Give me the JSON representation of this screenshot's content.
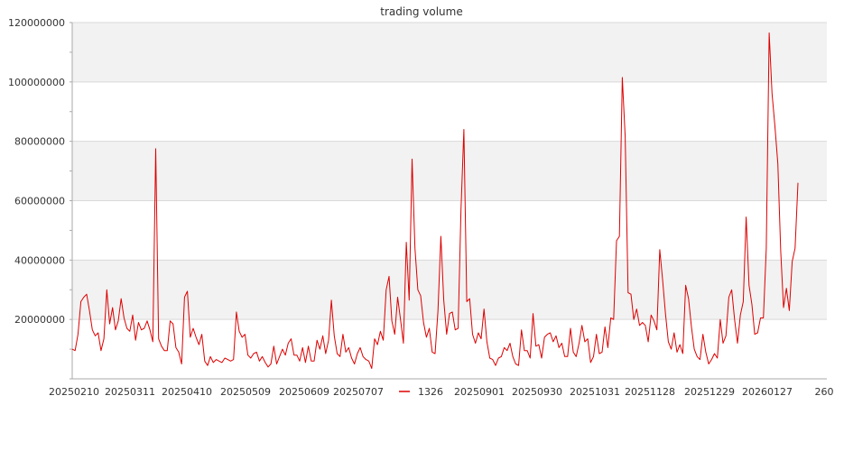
{
  "chart_data": {
    "type": "line",
    "title": "trading volume",
    "xlabel": "",
    "ylabel": "",
    "ylim": [
      0,
      120000000
    ],
    "yticks": [
      20000000,
      40000000,
      60000000,
      80000000,
      100000000,
      120000000
    ],
    "ytick_labels": [
      "20000000",
      "40000000",
      "60000000",
      "80000000",
      "100000000",
      "120000000"
    ],
    "xtick_labels": [
      "20250210",
      "20250311",
      "20250410",
      "20250509",
      "20250609",
      "20250707",
      "20250901",
      "20250930",
      "20251031",
      "20251128",
      "20251229",
      "20260127",
      "260"
    ],
    "grid": "horizontal, alternating bands",
    "legend": "bottom-center",
    "colors": {
      "line": "#dd0000",
      "band": "#f2f2f2",
      "grid": "#d9d9d9",
      "axis": "#aaaaaa"
    },
    "series": [
      {
        "name": "1326",
        "values": [
          10000000,
          9500000,
          15000000,
          26000000,
          27500000,
          28500000,
          23000000,
          16500000,
          14500000,
          15500000,
          9500000,
          13500000,
          30000000,
          18500000,
          24000000,
          16500000,
          19500000,
          27000000,
          20500000,
          17000000,
          16000000,
          21500000,
          13000000,
          19000000,
          16500000,
          17000000,
          19500000,
          16500000,
          12500000,
          77500000,
          13500000,
          11000000,
          9500000,
          9500000,
          19500000,
          18500000,
          10500000,
          9000000,
          5000000,
          27500000,
          29500000,
          14000000,
          17000000,
          14000000,
          11500000,
          15000000,
          6000000,
          4500000,
          7500000,
          5500000,
          6500000,
          6000000,
          5500000,
          7000000,
          6500000,
          6000000,
          6500000,
          22500000,
          16000000,
          14000000,
          15000000,
          8000000,
          7000000,
          8500000,
          9000000,
          6000000,
          7500000,
          5500000,
          4000000,
          5000000,
          11000000,
          5000000,
          7500000,
          10000000,
          8000000,
          12000000,
          13500000,
          8000000,
          8000000,
          6000000,
          10500000,
          5500000,
          11000000,
          6000000,
          6000000,
          13000000,
          10000000,
          14500000,
          8500000,
          13000000,
          26500000,
          14500000,
          8500000,
          7500000,
          15000000,
          9000000,
          10500000,
          7000000,
          5000000,
          8500000,
          10500000,
          7500000,
          6500000,
          6000000,
          3500000,
          13500000,
          11500000,
          16000000,
          13000000,
          30000000,
          34500000,
          19500000,
          15000000,
          27500000,
          20000000,
          12000000,
          46000000,
          26500000,
          74000000,
          44000000,
          30000000,
          28000000,
          19000000,
          14000000,
          17000000,
          9000000,
          8500000,
          23000000,
          48000000,
          26500000,
          15000000,
          22000000,
          22500000,
          16500000,
          17000000,
          57000000,
          84000000,
          26000000,
          27000000,
          15000000,
          12000000,
          15500000,
          13500000,
          23500000,
          12500000,
          7000000,
          6500000,
          4500000,
          7000000,
          7500000,
          10500000,
          9500000,
          12000000,
          7500000,
          5000000,
          4500000,
          16500000,
          9500000,
          9500000,
          7000000,
          22000000,
          11000000,
          11500000,
          7000000,
          14000000,
          15000000,
          15500000,
          12500000,
          14500000,
          10500000,
          12000000,
          7500000,
          7500000,
          17000000,
          9000000,
          7500000,
          12000000,
          18000000,
          12500000,
          13500000,
          5500000,
          7500000,
          15000000,
          8500000,
          9000000,
          17500000,
          10500000,
          20500000,
          20000000,
          46500000,
          48000000,
          101500000,
          81500000,
          29000000,
          28500000,
          20000000,
          23500000,
          18000000,
          19000000,
          18000000,
          12500000,
          21500000,
          19500000,
          16500000,
          43500000,
          33500000,
          22000000,
          12500000,
          10000000,
          15500000,
          9000000,
          11500000,
          8500000,
          31500000,
          27000000,
          17500000,
          10000000,
          7500000,
          6500000,
          15000000,
          9000000,
          5000000,
          6500000,
          8500000,
          7000000,
          20000000,
          12000000,
          14500000,
          27500000,
          30000000,
          20000000,
          12000000,
          21500000,
          26000000,
          54500000,
          31500000,
          25000000,
          15000000,
          15500000,
          20500000,
          20500000,
          44000000,
          116500000,
          96000000,
          85000000,
          72500000,
          43000000,
          24000000,
          30500000,
          23000000,
          39500000,
          44000000,
          66000000
        ]
      }
    ]
  }
}
